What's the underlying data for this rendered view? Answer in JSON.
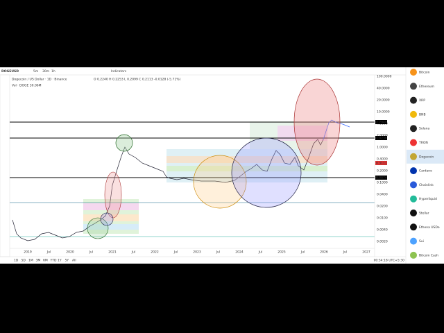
{
  "toolbar": {
    "symbol": "DOGEUSD",
    "intervals": [
      "5m",
      "30m",
      "1h"
    ],
    "indicators": "Indicators"
  },
  "legend": {
    "title": "Dogecoin / US Dollar · 1D · Binance",
    "ohlc": "O 0.2240 H 0.2253 L 0.2099 C 0.2113 -0.0128 (-5.71%)",
    "volume": "Vol · DOGE 30.06M"
  },
  "price_axis": [
    "100.0000",
    "40.0000",
    "20.0000",
    "10.0000",
    "4.0000",
    "2.0000",
    "1.0000",
    "0.4000",
    "0.2000",
    "0.1000",
    "0.0400",
    "0.0200",
    "0.0100",
    "0.0040",
    "0.0020"
  ],
  "price_tags": [
    "2.7940",
    "1.0236",
    "0.3111",
    "0.0874"
  ],
  "time_axis": [
    "2019",
    "Jul",
    "2020",
    "Jul",
    "2021",
    "Jul",
    "2022",
    "Jul",
    "2023",
    "Jul",
    "2024",
    "Jul",
    "2025",
    "Jul",
    "2026",
    "Jul",
    "2027"
  ],
  "ranges": [
    "1D",
    "5D",
    "1M",
    "3M",
    "6M",
    "YTD",
    "1Y",
    "5Y",
    "All"
  ],
  "clock": "00:34:18 UTC+5:30",
  "watchlist": [
    "Bitcoin",
    "Ethereum",
    "XRP",
    "BNB",
    "Solana",
    "TRON",
    "Dogecoin",
    "Cardano",
    "Chainlink",
    "Hyperliquid",
    "Stellar",
    "Ethena USDe",
    "Sui",
    "Bitcoin Cash"
  ]
}
